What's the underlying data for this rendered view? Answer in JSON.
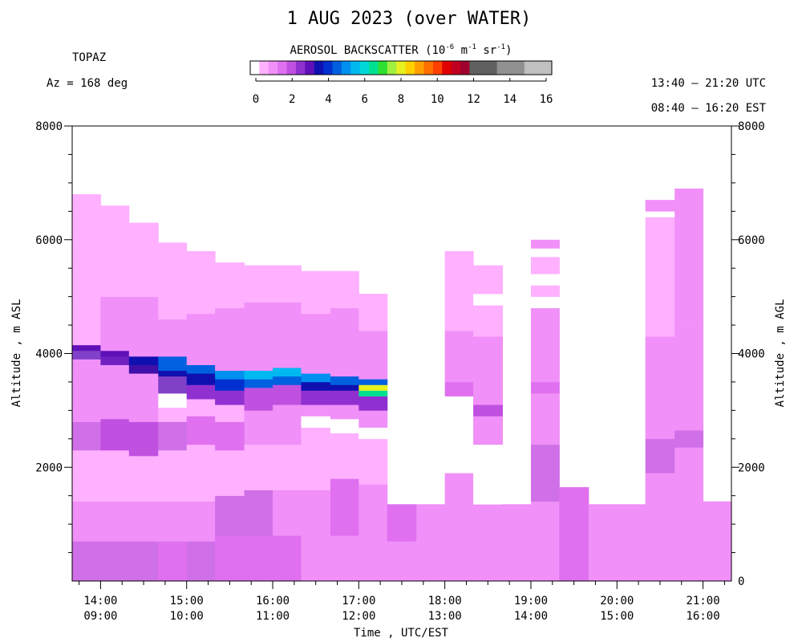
{
  "header": {
    "title": "1 AUG 2023 (over WATER)",
    "instrument": "TOPAZ",
    "azimuth": "Az = 168 deg",
    "utc_range": "13:40 – 21:20 UTC",
    "est_range": "08:40 – 16:20 EST"
  },
  "colorbar": {
    "label_main": "AEROSOL BACKSCATTER (10",
    "label_exp1": "-6",
    "label_m": " m",
    "label_exp2": "-1",
    "label_sr": " sr",
    "label_exp3": "-1",
    "label_close": ")",
    "ticks": [
      "0",
      "2",
      "4",
      "6",
      "8",
      "10",
      "12",
      "14",
      "16"
    ],
    "colors": [
      "#ffffff",
      "#ffb0ff",
      "#f090f8",
      "#e070f0",
      "#c050e0",
      "#9030d0",
      "#6010b8",
      "#1010b0",
      "#0030d0",
      "#0060e0",
      "#0090f0",
      "#00b8f0",
      "#00d8d8",
      "#00e090",
      "#30e030",
      "#a0f040",
      "#e8f020",
      "#ffd000",
      "#ffa000",
      "#ff7000",
      "#ff4000",
      "#e00000",
      "#c00020",
      "#a00030",
      "#606060",
      "#606060",
      "#606060",
      "#909090",
      "#909090",
      "#909090",
      "#c0c0c0",
      "#c0c0c0",
      "#c0c0c0"
    ]
  },
  "axes": {
    "y_left_label": "Altitude , m ASL",
    "y_right_label": "Altitude , m AGL",
    "x_label": "Time , UTC/EST",
    "y_ticks": [
      "8000",
      "6000",
      "4000",
      "2000"
    ],
    "y_right_ticks": [
      "8000",
      "6000",
      "4000",
      "2000",
      "0"
    ],
    "x_ticks_utc": [
      "14:00",
      "15:00",
      "16:00",
      "17:00",
      "18:00",
      "19:00",
      "20:00",
      "21:00"
    ],
    "x_ticks_est": [
      "09:00",
      "10:00",
      "11:00",
      "12:00",
      "13:00",
      "14:00",
      "15:00",
      "16:00"
    ]
  },
  "chart_data": {
    "type": "heatmap",
    "xlim_hours_utc": [
      13.67,
      21.33
    ],
    "ylim_m": [
      0,
      8000
    ],
    "profiles": [
      {
        "t0": 13.67,
        "t1": 14.0,
        "top": 6800,
        "layers": [
          [
            0,
            700,
            "#d070e8"
          ],
          [
            700,
            1400,
            "#f090f8"
          ],
          [
            1400,
            2300,
            "#ffb0ff"
          ],
          [
            2300,
            2800,
            "#d070e8"
          ],
          [
            2800,
            3900,
            "#f090f8"
          ],
          [
            3900,
            4050,
            "#8040c8"
          ],
          [
            4050,
            4150,
            "#6010b8"
          ],
          [
            4150,
            5200,
            "#ffb0ff"
          ],
          [
            5200,
            6800,
            "#ffb0ff"
          ]
        ]
      },
      {
        "t0": 14.0,
        "t1": 14.33,
        "top": 6600,
        "layers": [
          [
            0,
            700,
            "#d070e8"
          ],
          [
            700,
            1400,
            "#f090f8"
          ],
          [
            1400,
            2300,
            "#ffb0ff"
          ],
          [
            2300,
            2850,
            "#c050e0"
          ],
          [
            2850,
            3800,
            "#f090f8"
          ],
          [
            3800,
            3950,
            "#7020c0"
          ],
          [
            3950,
            4050,
            "#6010b8"
          ],
          [
            4050,
            5000,
            "#f090f8"
          ],
          [
            5000,
            6600,
            "#ffb0ff"
          ]
        ]
      },
      {
        "t0": 14.33,
        "t1": 14.67,
        "top": 6300,
        "layers": [
          [
            0,
            700,
            "#d070e8"
          ],
          [
            700,
            1400,
            "#f090f8"
          ],
          [
            1400,
            2200,
            "#ffb0ff"
          ],
          [
            2200,
            2800,
            "#c050e0"
          ],
          [
            2800,
            3650,
            "#f090f8"
          ],
          [
            3650,
            3800,
            "#4010a8"
          ],
          [
            3800,
            3950,
            "#1010b0"
          ],
          [
            3950,
            5000,
            "#f090f8"
          ],
          [
            5000,
            6300,
            "#ffb0ff"
          ]
        ]
      },
      {
        "t0": 14.67,
        "t1": 15.0,
        "top": 5950,
        "layers": [
          [
            0,
            700,
            "#e070f0"
          ],
          [
            700,
            1400,
            "#f090f8"
          ],
          [
            1400,
            2300,
            "#ffb0ff"
          ],
          [
            2300,
            2800,
            "#d070e8"
          ],
          [
            2800,
            3050,
            "#ffb0ff"
          ],
          [
            3050,
            3300,
            "#ffffff"
          ],
          [
            3300,
            3600,
            "#8040c8"
          ],
          [
            3600,
            3700,
            "#1010b0"
          ],
          [
            3700,
            3950,
            "#0060e0"
          ],
          [
            3950,
            4600,
            "#f090f8"
          ],
          [
            4600,
            5950,
            "#ffb0ff"
          ]
        ]
      },
      {
        "t0": 15.0,
        "t1": 15.33,
        "top": 5800,
        "layers": [
          [
            0,
            700,
            "#d070e8"
          ],
          [
            700,
            1400,
            "#f090f8"
          ],
          [
            1400,
            2400,
            "#ffb0ff"
          ],
          [
            2400,
            2900,
            "#e070f0"
          ],
          [
            2900,
            3200,
            "#ffb0ff"
          ],
          [
            3200,
            3450,
            "#9030d0"
          ],
          [
            3450,
            3650,
            "#1010b0"
          ],
          [
            3650,
            3800,
            "#0060e0"
          ],
          [
            3800,
            4700,
            "#f090f8"
          ],
          [
            4700,
            5800,
            "#ffb0ff"
          ]
        ]
      },
      {
        "t0": 15.33,
        "t1": 15.67,
        "top": 5600,
        "layers": [
          [
            0,
            800,
            "#e070f0"
          ],
          [
            800,
            1500,
            "#d070e8"
          ],
          [
            1500,
            2300,
            "#ffb0ff"
          ],
          [
            2300,
            2800,
            "#e070f0"
          ],
          [
            2800,
            3100,
            "#ffb0ff"
          ],
          [
            3100,
            3350,
            "#9030d0"
          ],
          [
            3350,
            3550,
            "#0030d0"
          ],
          [
            3550,
            3700,
            "#0090f0"
          ],
          [
            3700,
            4800,
            "#f090f8"
          ],
          [
            4800,
            5600,
            "#ffb0ff"
          ]
        ]
      },
      {
        "t0": 15.67,
        "t1": 16.0,
        "top": 5550,
        "layers": [
          [
            0,
            800,
            "#e070f0"
          ],
          [
            800,
            1600,
            "#d070e8"
          ],
          [
            1600,
            2400,
            "#ffb0ff"
          ],
          [
            2400,
            3000,
            "#f090f8"
          ],
          [
            3000,
            3400,
            "#c050e0"
          ],
          [
            3400,
            3550,
            "#0060e0"
          ],
          [
            3550,
            3700,
            "#00b8f0"
          ],
          [
            3700,
            4900,
            "#f090f8"
          ],
          [
            4900,
            5550,
            "#ffb0ff"
          ]
        ]
      },
      {
        "t0": 16.0,
        "t1": 16.33,
        "top": 5550,
        "layers": [
          [
            0,
            800,
            "#e070f0"
          ],
          [
            800,
            1600,
            "#f090f8"
          ],
          [
            1600,
            2400,
            "#ffb0ff"
          ],
          [
            2400,
            3100,
            "#f090f8"
          ],
          [
            3100,
            3450,
            "#c050e0"
          ],
          [
            3450,
            3600,
            "#0060e0"
          ],
          [
            3600,
            3750,
            "#00b8f0"
          ],
          [
            3750,
            4900,
            "#f090f8"
          ],
          [
            4900,
            5550,
            "#ffb0ff"
          ]
        ]
      },
      {
        "t0": 16.33,
        "t1": 16.67,
        "top": 5450,
        "layers": [
          [
            0,
            800,
            "#f090f8"
          ],
          [
            800,
            1600,
            "#f090f8"
          ],
          [
            1600,
            2700,
            "#ffb0ff"
          ],
          [
            2700,
            2900,
            "#ffffff"
          ],
          [
            2900,
            3100,
            "#f090f8"
          ],
          [
            3100,
            3350,
            "#9030d0"
          ],
          [
            3350,
            3500,
            "#1010b0"
          ],
          [
            3500,
            3650,
            "#0090f0"
          ],
          [
            3650,
            4700,
            "#f090f8"
          ],
          [
            4700,
            5450,
            "#ffb0ff"
          ]
        ]
      },
      {
        "t0": 16.67,
        "t1": 17.0,
        "top": 5450,
        "layers": [
          [
            0,
            800,
            "#f090f8"
          ],
          [
            800,
            1800,
            "#e070f0"
          ],
          [
            1800,
            2600,
            "#ffb0ff"
          ],
          [
            2600,
            2850,
            "#ffffff"
          ],
          [
            2850,
            3100,
            "#f090f8"
          ],
          [
            3100,
            3350,
            "#9030d0"
          ],
          [
            3350,
            3450,
            "#1010b0"
          ],
          [
            3450,
            3600,
            "#0060e0"
          ],
          [
            3600,
            4800,
            "#f090f8"
          ],
          [
            4800,
            5450,
            "#ffb0ff"
          ]
        ]
      },
      {
        "t0": 17.0,
        "t1": 17.33,
        "top": 5050,
        "layers": [
          [
            0,
            800,
            "#f090f8"
          ],
          [
            800,
            1700,
            "#f090f8"
          ],
          [
            1700,
            2500,
            "#ffb0ff"
          ],
          [
            2500,
            2700,
            "#ffffff"
          ],
          [
            2700,
            3000,
            "#f090f8"
          ],
          [
            3000,
            3250,
            "#9030d0"
          ],
          [
            3250,
            3350,
            "#00e090"
          ],
          [
            3350,
            3450,
            "#e8f020"
          ],
          [
            3450,
            3550,
            "#0060e0"
          ],
          [
            3550,
            4400,
            "#f090f8"
          ],
          [
            4400,
            5050,
            "#ffb0ff"
          ]
        ]
      },
      {
        "t0": 17.33,
        "t1": 17.67,
        "top": 1350,
        "layers": [
          [
            0,
            700,
            "#f090f8"
          ],
          [
            700,
            1350,
            "#e070f0"
          ]
        ]
      },
      {
        "t0": 17.67,
        "t1": 18.0,
        "top": 1350,
        "layers": [
          [
            0,
            1350,
            "#f090f8"
          ]
        ]
      },
      {
        "t0": 18.0,
        "t1": 18.33,
        "top": 5800,
        "layers": [
          [
            0,
            1900,
            "#f090f8"
          ],
          [
            1900,
            3250,
            "#ffffff"
          ],
          [
            3250,
            3500,
            "#e070f0"
          ],
          [
            3500,
            4400,
            "#f090f8"
          ],
          [
            4400,
            5800,
            "#ffb0ff"
          ]
        ]
      },
      {
        "t0": 18.33,
        "t1": 18.67,
        "top": 5550,
        "layers": [
          [
            0,
            1350,
            "#f090f8"
          ],
          [
            1350,
            2400,
            "#ffffff"
          ],
          [
            2400,
            2900,
            "#f090f8"
          ],
          [
            2900,
            3100,
            "#c050e0"
          ],
          [
            3100,
            4300,
            "#f090f8"
          ],
          [
            4300,
            4850,
            "#ffb0ff"
          ],
          [
            4850,
            5050,
            "#ffffff"
          ],
          [
            5050,
            5550,
            "#ffb0ff"
          ]
        ]
      },
      {
        "t0": 18.67,
        "t1": 19.0,
        "top": 1350,
        "layers": [
          [
            0,
            1350,
            "#f090f8"
          ]
        ]
      },
      {
        "t0": 19.0,
        "t1": 19.33,
        "top": 6000,
        "layers": [
          [
            0,
            1400,
            "#f090f8"
          ],
          [
            1400,
            2400,
            "#d070e8"
          ],
          [
            2400,
            3300,
            "#f090f8"
          ],
          [
            3300,
            3500,
            "#e070f0"
          ],
          [
            3500,
            4800,
            "#f090f8"
          ],
          [
            4800,
            5000,
            "#ffffff"
          ],
          [
            5000,
            5200,
            "#ffb0ff"
          ],
          [
            5200,
            5400,
            "#ffffff"
          ],
          [
            5400,
            5700,
            "#ffb0ff"
          ],
          [
            5700,
            5850,
            "#ffffff"
          ],
          [
            5850,
            6000,
            "#f090f8"
          ]
        ]
      },
      {
        "t0": 19.33,
        "t1": 19.67,
        "top": 1650,
        "layers": [
          [
            0,
            1650,
            "#e070f0"
          ]
        ]
      },
      {
        "t0": 19.67,
        "t1": 20.0,
        "top": 1350,
        "layers": [
          [
            0,
            1350,
            "#f090f8"
          ]
        ]
      },
      {
        "t0": 20.0,
        "t1": 20.33,
        "top": 1350,
        "layers": [
          [
            0,
            1350,
            "#f090f8"
          ]
        ]
      },
      {
        "t0": 20.33,
        "t1": 20.67,
        "top": 6700,
        "layers": [
          [
            0,
            1900,
            "#f090f8"
          ],
          [
            1900,
            2500,
            "#d070e8"
          ],
          [
            2500,
            4300,
            "#f090f8"
          ],
          [
            4300,
            6400,
            "#ffb0ff"
          ],
          [
            6400,
            6500,
            "#ffffff"
          ],
          [
            6500,
            6700,
            "#f090f8"
          ]
        ]
      },
      {
        "t0": 20.67,
        "t1": 21.0,
        "top": 6900,
        "layers": [
          [
            0,
            2350,
            "#f090f8"
          ],
          [
            2350,
            2650,
            "#d070e8"
          ],
          [
            2650,
            4500,
            "#f090f8"
          ],
          [
            4500,
            6900,
            "#f090f8"
          ]
        ]
      },
      {
        "t0": 21.0,
        "t1": 21.33,
        "top": 1400,
        "layers": [
          [
            0,
            1400,
            "#f090f8"
          ]
        ]
      }
    ]
  }
}
